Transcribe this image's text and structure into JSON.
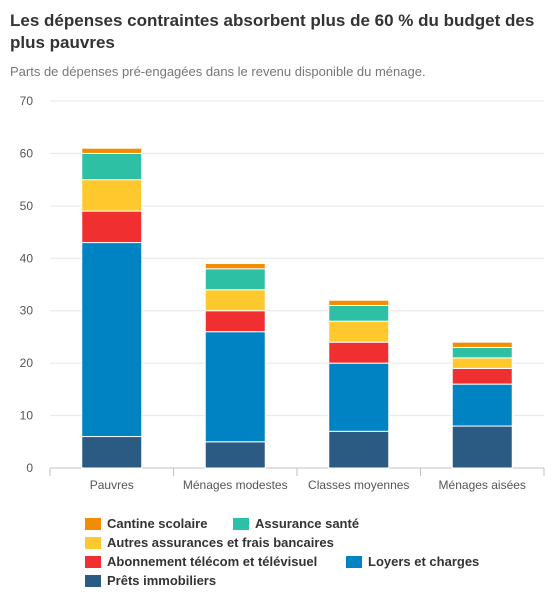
{
  "header": {
    "title": "Les dépenses contraintes absorbent plus de 60 % du budget des plus pauvres",
    "subtitle": "Parts de dépenses pré-engagées dans le revenu disponible du ménage."
  },
  "chart_data": {
    "type": "bar",
    "stacked": true,
    "title": "Les dépenses contraintes absorbent plus de 60 % du budget des plus pauvres",
    "subtitle": "Parts de dépenses pré-engagées dans le revenu disponible du ménage.",
    "xlabel": "",
    "ylabel": "",
    "ylim": [
      0,
      70
    ],
    "yticks": [
      0,
      10,
      20,
      30,
      40,
      50,
      60,
      70
    ],
    "grid": true,
    "legend_position": "bottom",
    "categories": [
      "Pauvres",
      "Ménages modestes",
      "Classes moyennes",
      "Ménages aisées"
    ],
    "series": [
      {
        "name": "Prêts immobiliers",
        "color": "#2b5a82",
        "values": [
          6,
          5,
          7,
          8
        ]
      },
      {
        "name": "Loyers et charges",
        "color": "#0083c3",
        "values": [
          37,
          21,
          13,
          8
        ]
      },
      {
        "name": "Abonnement télécom et télévisuel",
        "color": "#f03030",
        "values": [
          6,
          4,
          4,
          3
        ]
      },
      {
        "name": "Autres assurances et frais bancaires",
        "color": "#ffc82c",
        "values": [
          6,
          4,
          4,
          2
        ]
      },
      {
        "name": "Assurance santé",
        "color": "#2ec0a4",
        "values": [
          5,
          4,
          3,
          2
        ]
      },
      {
        "name": "Cantine scolaire",
        "color": "#f28c00",
        "values": [
          1,
          1,
          1,
          1
        ]
      }
    ]
  },
  "legend": {
    "items": [
      {
        "label": "Cantine scolaire",
        "color": "#f28c00"
      },
      {
        "label": "Assurance santé",
        "color": "#2ec0a4"
      },
      {
        "label": "Autres assurances et frais bancaires",
        "color": "#ffc82c"
      },
      {
        "label": "Abonnement télécom et télévisuel",
        "color": "#f03030"
      },
      {
        "label": "Loyers et charges",
        "color": "#0083c3"
      },
      {
        "label": "Prêts immobiliers",
        "color": "#2b5a82"
      }
    ]
  }
}
